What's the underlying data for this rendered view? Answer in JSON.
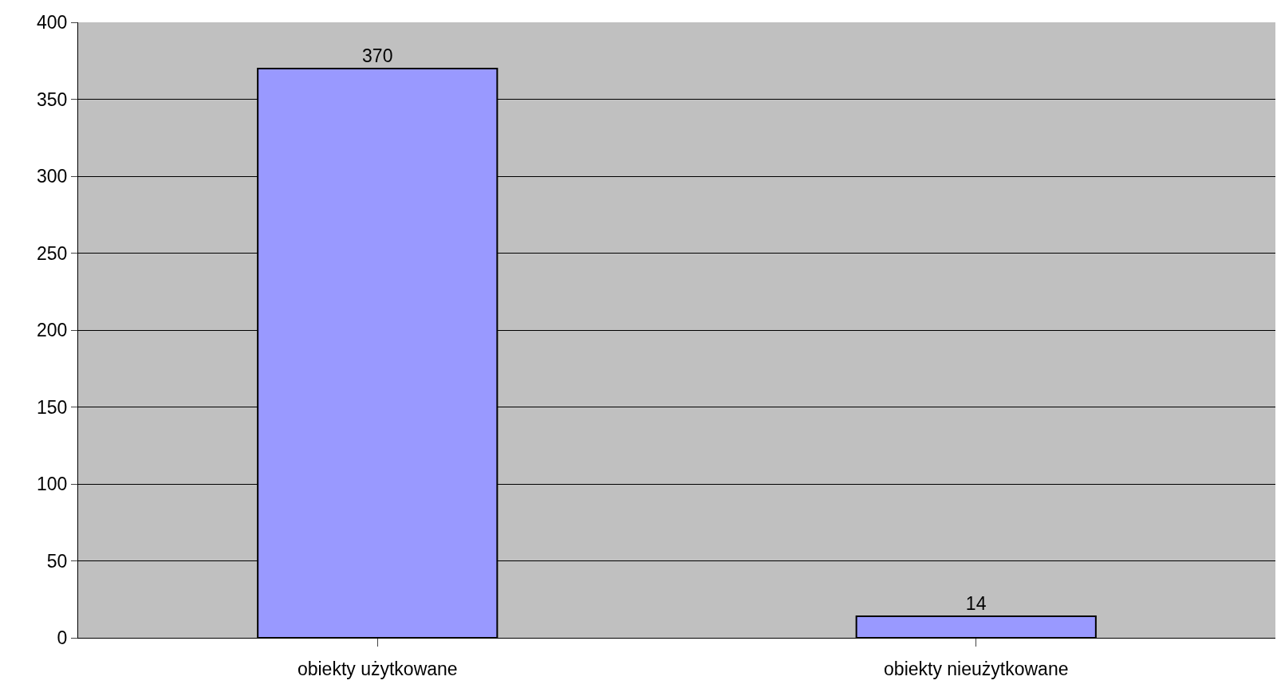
{
  "chart_data": {
    "type": "bar",
    "categories": [
      "obiekty użytkowane",
      "obiekty nieużytkowane"
    ],
    "values": [
      370,
      14
    ],
    "color": "#9999ff",
    "ylim": [
      0,
      400
    ],
    "yticks": [
      0,
      50,
      100,
      150,
      200,
      250,
      300,
      350,
      400
    ],
    "grid": "y",
    "data_labels": true
  }
}
